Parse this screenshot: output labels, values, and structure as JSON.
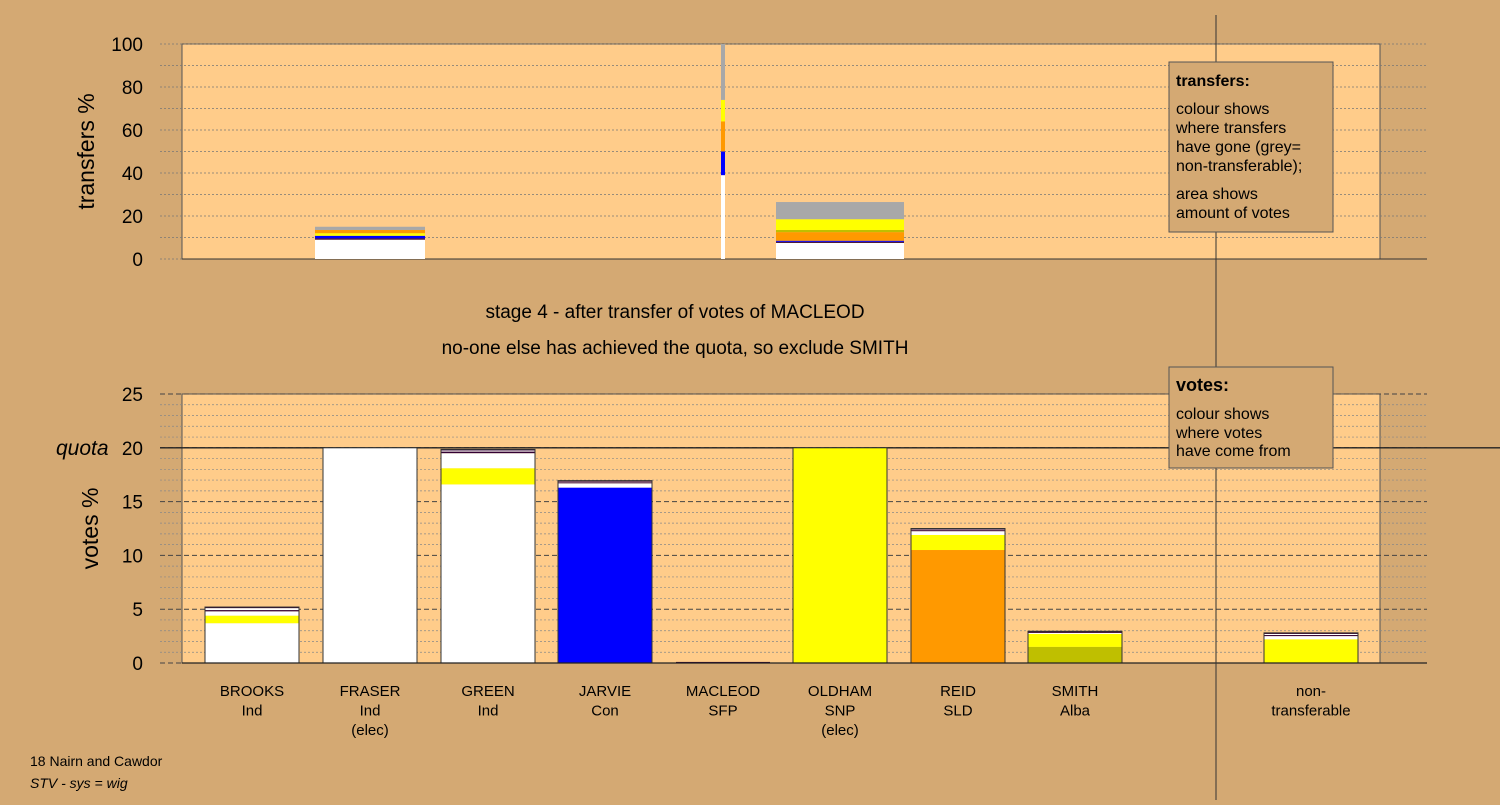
{
  "colors": {
    "page_bg": "#d4a973",
    "plot_bg": "#ffcc8a",
    "Ind": "#ffffff",
    "Con": "#0000ff",
    "SNP": "#ffff00",
    "SLD": "#ff9900",
    "Alba": "#bfbf00",
    "non_transferable": "#a8a8a8",
    "dark": "#330033"
  },
  "stage_text": {
    "line1": "stage 4 - after transfer of votes of MACLEOD",
    "line2": "no-one else has achieved the quota, so exclude SMITH"
  },
  "footer": {
    "line1": "18 Nairn and Cawdor",
    "line2": "STV - sys = wig"
  },
  "legend_transfers": {
    "title": "transfers:",
    "lines1": [
      "colour shows",
      "where transfers",
      "have gone (grey=",
      "non-transferable);"
    ],
    "lines2": [
      "area shows",
      "amount of votes"
    ]
  },
  "legend_votes": {
    "title": "votes:",
    "lines": [
      "colour shows",
      "where votes",
      "have come from"
    ]
  },
  "chart_data": [
    {
      "type": "bar",
      "name": "transfers",
      "ylabel": "transfers %",
      "ylim": [
        0,
        100
      ],
      "yticks": [
        0,
        20,
        40,
        60,
        80,
        100
      ],
      "minor_grid_step": 10,
      "legend_position": "top-right",
      "bars": [
        {
          "category": "BROOKS",
          "width_share": 0.055,
          "segments": [
            {
              "party": "Ind",
              "value": 9
            },
            {
              "party": "dark",
              "value": 0.6
            },
            {
              "party": "Con",
              "value": 1.2
            },
            {
              "party": "SNP",
              "value": 1.2
            },
            {
              "party": "SLD",
              "value": 1.5
            },
            {
              "party": "non_transferable",
              "value": 1.5
            }
          ]
        },
        {
          "category": "MACLEOD",
          "width_share": 0.002,
          "segments": [
            {
              "party": "Ind",
              "value": 39
            },
            {
              "party": "Con",
              "value": 11
            },
            {
              "party": "SLD",
              "value": 14
            },
            {
              "party": "SNP",
              "value": 10
            },
            {
              "party": "non_transferable",
              "value": 26
            }
          ]
        },
        {
          "category": "OLDHAM",
          "width_share": 0.064,
          "segments": [
            {
              "party": "Ind",
              "value": 7.5
            },
            {
              "party": "dark",
              "value": 0.5
            },
            {
              "party": "Con",
              "value": 0.5
            },
            {
              "party": "SLD",
              "value": 4
            },
            {
              "party": "Alba",
              "value": 1
            },
            {
              "party": "SNP",
              "value": 5
            },
            {
              "party": "non_transferable",
              "value": 8
            }
          ]
        }
      ]
    },
    {
      "type": "bar",
      "name": "votes",
      "ylabel": "votes %",
      "ylim": [
        0,
        25
      ],
      "yticks": [
        0,
        5,
        10,
        15,
        20,
        25
      ],
      "minor_grid_step": 1,
      "quota": 20,
      "quota_label": "quota",
      "legend_position": "top-right",
      "bars": [
        {
          "label": "BROOKS",
          "party": "Ind",
          "elected": false,
          "segments": [
            {
              "party": "Ind",
              "value": 3.7
            },
            {
              "party": "SNP",
              "value": 0.7
            },
            {
              "party": "Ind",
              "value": 0.4
            },
            {
              "party": "dark",
              "value": 0.12
            },
            {
              "party": "Ind",
              "value": 0.18
            },
            {
              "party": "dark",
              "value": 0.1
            }
          ]
        },
        {
          "label": "FRASER",
          "party": "Ind",
          "elected": true,
          "segments": [
            {
              "party": "Ind",
              "value": 20
            }
          ]
        },
        {
          "label": "GREEN",
          "party": "Ind",
          "elected": false,
          "segments": [
            {
              "party": "Ind",
              "value": 16.6
            },
            {
              "party": "SNP",
              "value": 1.5
            },
            {
              "party": "Ind",
              "value": 1.4
            },
            {
              "party": "dark",
              "value": 0.15
            },
            {
              "party": "Ind",
              "value": 0.1
            },
            {
              "party": "dark",
              "value": 0.1
            }
          ]
        },
        {
          "label": "JARVIE",
          "party": "Con",
          "elected": false,
          "segments": [
            {
              "party": "Con",
              "value": 16.3
            },
            {
              "party": "Ind",
              "value": 0.4
            },
            {
              "party": "dark",
              "value": 0.1
            },
            {
              "party": "Ind",
              "value": 0.05
            },
            {
              "party": "dark",
              "value": 0.1
            }
          ]
        },
        {
          "label": "MACLEOD",
          "party": "SFP",
          "elected": false,
          "segments": [
            {
              "party": "dark",
              "value": 0.1
            }
          ]
        },
        {
          "label": "OLDHAM",
          "party": "SNP",
          "elected": true,
          "segments": [
            {
              "party": "SNP",
              "value": 20
            }
          ]
        },
        {
          "label": "REID",
          "party": "SLD",
          "elected": false,
          "segments": [
            {
              "party": "SLD",
              "value": 10.5
            },
            {
              "party": "SNP",
              "value": 1.4
            },
            {
              "party": "Ind",
              "value": 0.35
            },
            {
              "party": "dark",
              "value": 0.1
            },
            {
              "party": "Ind",
              "value": 0.05
            },
            {
              "party": "dark",
              "value": 0.1
            }
          ]
        },
        {
          "label": "SMITH",
          "party": "Alba",
          "elected": false,
          "segments": [
            {
              "party": "Alba",
              "value": 1.5
            },
            {
              "party": "SNP",
              "value": 1.2
            },
            {
              "party": "Ind",
              "value": 0.1
            },
            {
              "party": "dark",
              "value": 0.15
            }
          ]
        },
        {
          "label": "non-\ntransferable",
          "party": "",
          "elected": false,
          "separated": true,
          "segments": [
            {
              "party": "SNP",
              "value": 2.2
            },
            {
              "party": "Ind",
              "value": 0.3
            },
            {
              "party": "dark",
              "value": 0.1
            },
            {
              "party": "Ind",
              "value": 0.1
            },
            {
              "party": "dark",
              "value": 0.1
            }
          ]
        }
      ]
    }
  ]
}
